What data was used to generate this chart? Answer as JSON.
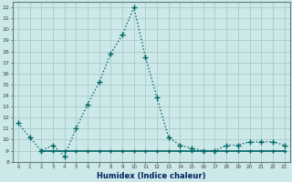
{
  "xlabel": "Humidex (Indice chaleur)",
  "background_color": "#cce8e8",
  "grid_color": "#aacccc",
  "line_color": "#006666",
  "xlim": [
    -0.5,
    23.5
  ],
  "ylim": [
    8,
    22.5
  ],
  "xticks": [
    0,
    1,
    2,
    3,
    4,
    5,
    6,
    7,
    8,
    9,
    10,
    11,
    12,
    13,
    14,
    15,
    16,
    17,
    18,
    19,
    20,
    21,
    22,
    23
  ],
  "yticks": [
    8,
    9,
    10,
    11,
    12,
    13,
    14,
    15,
    16,
    17,
    18,
    19,
    20,
    21,
    22
  ],
  "series1_x": [
    0,
    1,
    2,
    3,
    4,
    5,
    6,
    7,
    8,
    9,
    10,
    11,
    12,
    13,
    14,
    15,
    16,
    17,
    18,
    19,
    20,
    21,
    22,
    23
  ],
  "series1_y": [
    11.5,
    10.2,
    9.0,
    9.5,
    8.5,
    11.0,
    13.2,
    15.2,
    17.8,
    19.5,
    22.0,
    17.5,
    13.8,
    10.2,
    9.5,
    9.2,
    9.0,
    9.0,
    9.5,
    9.5,
    9.8,
    9.8,
    9.8,
    9.5
  ],
  "series2_x": [
    2,
    3,
    4,
    5,
    6,
    7,
    8,
    9,
    10,
    11,
    12,
    13,
    14,
    15,
    16,
    17,
    18,
    19,
    20,
    21,
    22,
    23
  ],
  "series2_y": [
    9.0,
    9.0,
    9.0,
    9.0,
    9.0,
    9.0,
    9.0,
    9.0,
    9.0,
    9.0,
    9.0,
    9.0,
    9.0,
    9.0,
    9.0,
    9.0,
    9.0,
    9.0,
    9.0,
    9.0,
    9.0,
    9.0
  ]
}
